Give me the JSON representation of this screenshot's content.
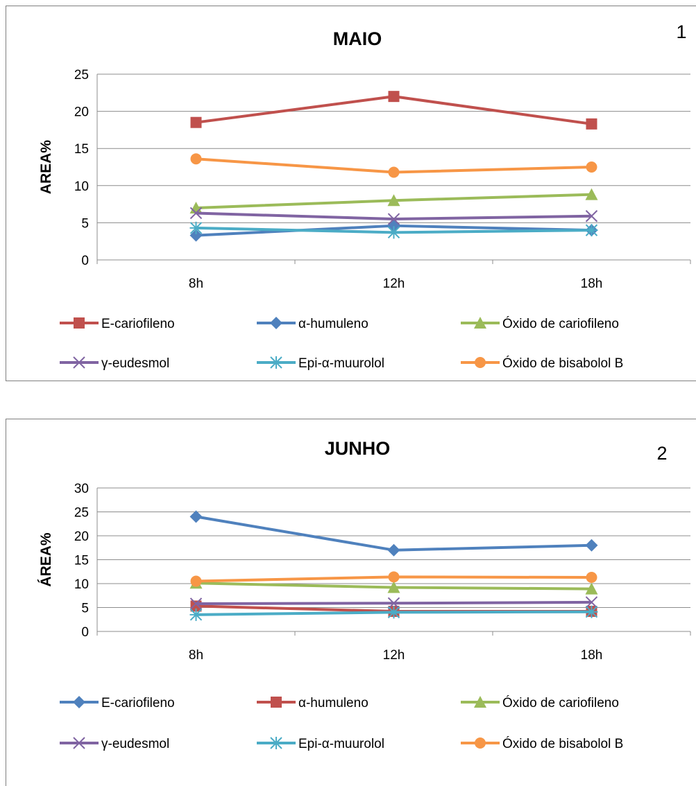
{
  "chart_data": [
    {
      "type": "line",
      "title": "MAIO",
      "panel_number": "1",
      "ylabel": "AREA%",
      "xlabel": "",
      "categories": [
        "8h",
        "12h",
        "18h"
      ],
      "ylim": [
        0,
        25
      ],
      "yticks": [
        0,
        5,
        10,
        15,
        20,
        25
      ],
      "grid": true,
      "legend_position": "bottom",
      "series": [
        {
          "name": "E-cariofileno",
          "values": [
            18.5,
            22.0,
            18.3
          ],
          "color": "#c0504d",
          "marker": "square"
        },
        {
          "name": "α-humuleno",
          "values": [
            3.3,
            4.6,
            4.0
          ],
          "color": "#4f81bd",
          "marker": "diamond"
        },
        {
          "name": "Óxido de cariofileno",
          "values": [
            7.0,
            8.0,
            8.8
          ],
          "color": "#9bbb59",
          "marker": "triangle"
        },
        {
          "name": "γ-eudesmol",
          "values": [
            6.3,
            5.5,
            5.9
          ],
          "color": "#8064a2",
          "marker": "x"
        },
        {
          "name": "Epi-α-muurolol",
          "values": [
            4.3,
            3.7,
            4.0
          ],
          "color": "#4bacc6",
          "marker": "star"
        },
        {
          "name": "Óxido de bisabolol B",
          "values": [
            13.6,
            11.8,
            12.5
          ],
          "color": "#f79646",
          "marker": "circle"
        }
      ]
    },
    {
      "type": "line",
      "title": "JUNHO",
      "panel_number": "2",
      "ylabel": "ÁREA%",
      "xlabel": "",
      "categories": [
        "8h",
        "12h",
        "18h"
      ],
      "ylim": [
        0,
        30
      ],
      "yticks": [
        0,
        5,
        10,
        15,
        20,
        25,
        30
      ],
      "grid": true,
      "legend_position": "bottom",
      "series": [
        {
          "name": "E-cariofileno",
          "values": [
            24.0,
            17.0,
            18.0
          ],
          "color": "#4f81bd",
          "marker": "diamond"
        },
        {
          "name": "α-humuleno",
          "values": [
            5.3,
            4.2,
            4.2
          ],
          "color": "#c0504d",
          "marker": "square"
        },
        {
          "name": "Óxido de cariofileno",
          "values": [
            10.1,
            9.2,
            8.9
          ],
          "color": "#9bbb59",
          "marker": "triangle"
        },
        {
          "name": "γ-eudesmol",
          "values": [
            5.8,
            5.9,
            6.1
          ],
          "color": "#8064a2",
          "marker": "x"
        },
        {
          "name": "Epi-α-muurolol",
          "values": [
            3.5,
            4.0,
            4.1
          ],
          "color": "#4bacc6",
          "marker": "star"
        },
        {
          "name": "Óxido de bisabolol B",
          "values": [
            10.5,
            11.4,
            11.3
          ],
          "color": "#f79646",
          "marker": "circle"
        }
      ]
    }
  ]
}
